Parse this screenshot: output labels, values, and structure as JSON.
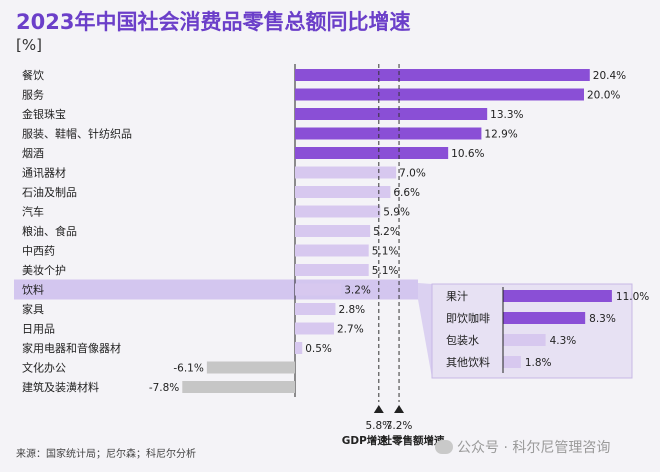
{
  "title": "2023年中国社会消费品零售总额同比增速",
  "unit": "[%]",
  "source": "来源：国家统计局；尼尔森；科尼尔分析",
  "watermark": "公众号 · 科尔尼管理咨询",
  "colors": {
    "strong": "#8a4fd6",
    "light": "#d7c8ef",
    "negative": "#c6c6c6",
    "highlight": "#d3c6ef",
    "text": "#222222"
  },
  "chart_data": {
    "type": "bar",
    "orientation": "horizontal",
    "categories": [
      "餐饮",
      "服务",
      "金银珠宝",
      "服装、鞋帽、针纺织品",
      "烟酒",
      "通讯器材",
      "石油及制品",
      "汽车",
      "粮油、食品",
      "中西药",
      "美妆个护",
      "饮料",
      "家具",
      "日用品",
      "家用电器和音像器材",
      "文化办公",
      "建筑及装潢材料"
    ],
    "values": [
      20.4,
      20.0,
      13.3,
      12.9,
      10.6,
      7.0,
      6.6,
      5.9,
      5.2,
      5.1,
      5.1,
      3.2,
      2.8,
      2.7,
      0.5,
      -6.1,
      -7.8
    ],
    "value_labels": [
      "20.4%",
      "20.0%",
      "13.3%",
      "12.9%",
      "10.6%",
      "7.0%",
      "6.6%",
      "5.9%",
      "5.2%",
      "5.1%",
      "5.1%",
      "3.2%",
      "2.8%",
      "2.7%",
      "0.5%",
      "-6.1%",
      "-7.8%"
    ],
    "highlighted_category": "饮料",
    "reference_lines": [
      {
        "name": "GDP增速",
        "value": 5.8,
        "label": "5.8%"
      },
      {
        "name": "社零售额增速",
        "value": 7.2,
        "label": "7.2%"
      }
    ],
    "breakdown": {
      "parent": "饮料",
      "categories": [
        "果汁",
        "即饮咖啡",
        "包装水",
        "其他饮料"
      ],
      "values": [
        11.0,
        8.3,
        4.3,
        1.8
      ],
      "value_labels": [
        "11.0%",
        "8.3%",
        "4.3%",
        "1.8%"
      ]
    },
    "xlim": [
      -8,
      21
    ]
  }
}
